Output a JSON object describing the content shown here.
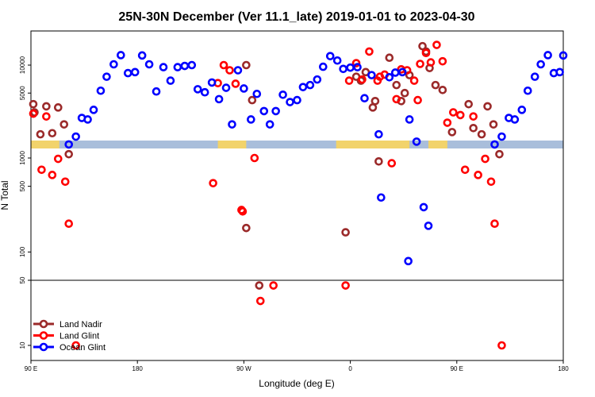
{
  "chart_data": {
    "type": "scatter",
    "title": "25N-30N December (Ver 11.1_late)   2019-01-01 to 2023-04-30",
    "xlabel": "Longitude (deg E)",
    "ylabel": "N Total",
    "x_ticks": [
      {
        "pos": 0,
        "label": "90 E"
      },
      {
        "pos": 90,
        "label": "180"
      },
      {
        "pos": 180,
        "label": "90 W"
      },
      {
        "pos": 270,
        "label": "0"
      },
      {
        "pos": 360,
        "label": "90 E"
      },
      {
        "pos": 450,
        "label": "180"
      }
    ],
    "xlim": [
      0,
      450
    ],
    "y_ticks_upper": [
      {
        "value": 10000,
        "label": "10000"
      },
      {
        "value": 5000,
        "label": "5000"
      },
      {
        "value": 1000,
        "label": "1000"
      },
      {
        "value": 500,
        "label": "500"
      },
      {
        "value": 100,
        "label": "100"
      },
      {
        "value": 50,
        "label": "50"
      }
    ],
    "y_ticks_lower": [
      {
        "value": 10,
        "label": "10"
      }
    ],
    "series": [
      {
        "name": "Land Nadir",
        "color": "#9b2a2a",
        "points": [
          [
            2,
            3800
          ],
          [
            3,
            3100
          ],
          [
            8,
            1800
          ],
          [
            13,
            3600
          ],
          [
            18,
            1850
          ],
          [
            23,
            3500
          ],
          [
            28,
            2300
          ],
          [
            32,
            1100
          ],
          [
            182,
            180
          ],
          [
            193,
            44
          ],
          [
            182,
            10000
          ],
          [
            187,
            4200
          ],
          [
            266,
            162
          ],
          [
            275,
            7500
          ],
          [
            279,
            6800
          ],
          [
            283,
            8400
          ],
          [
            289,
            3500
          ],
          [
            291,
            4100
          ],
          [
            294,
            920
          ],
          [
            303,
            12000
          ],
          [
            309,
            6100
          ],
          [
            313,
            4100
          ],
          [
            316,
            5000
          ],
          [
            320,
            7800
          ],
          [
            331,
            16000
          ],
          [
            334,
            14000
          ],
          [
            337,
            9300
          ],
          [
            342,
            6100
          ],
          [
            348,
            5400
          ],
          [
            356,
            1900
          ],
          [
            370,
            3800
          ],
          [
            374,
            2100
          ],
          [
            381,
            1800
          ],
          [
            386,
            3600
          ],
          [
            391,
            2300
          ],
          [
            396,
            1100
          ]
        ]
      },
      {
        "name": "Land Glint",
        "color": "#ff0000",
        "points": [
          [
            2,
            3000
          ],
          [
            9,
            750
          ],
          [
            13,
            2800
          ],
          [
            18,
            660
          ],
          [
            23,
            980
          ],
          [
            29,
            560
          ],
          [
            32,
            200
          ],
          [
            38,
            10
          ],
          [
            154,
            540
          ],
          [
            158,
            6400
          ],
          [
            163,
            10000
          ],
          [
            168,
            8800
          ],
          [
            173,
            6300
          ],
          [
            178,
            280
          ],
          [
            179,
            270
          ],
          [
            189,
            1000
          ],
          [
            194,
            30
          ],
          [
            205,
            44
          ],
          [
            266,
            44
          ],
          [
            269,
            6800
          ],
          [
            275,
            10500
          ],
          [
            280,
            7000
          ],
          [
            286,
            14000
          ],
          [
            293,
            6800
          ],
          [
            295,
            7500
          ],
          [
            299,
            7900
          ],
          [
            305,
            880
          ],
          [
            309,
            4300
          ],
          [
            313,
            9000
          ],
          [
            318,
            8800
          ],
          [
            324,
            6800
          ],
          [
            327,
            4200
          ],
          [
            329,
            10300
          ],
          [
            334,
            13500
          ],
          [
            338,
            10700
          ],
          [
            343,
            16500
          ],
          [
            348,
            11000
          ],
          [
            352,
            2400
          ],
          [
            357,
            3100
          ],
          [
            363,
            2900
          ],
          [
            367,
            750
          ],
          [
            374,
            2800
          ],
          [
            378,
            660
          ],
          [
            384,
            980
          ],
          [
            389,
            560
          ],
          [
            392,
            200
          ],
          [
            398,
            10
          ]
        ]
      },
      {
        "name": "Ocean Glint",
        "color": "#0000ff",
        "points": [
          [
            32,
            1400
          ],
          [
            38,
            1700
          ],
          [
            43,
            2700
          ],
          [
            48,
            2600
          ],
          [
            53,
            3300
          ],
          [
            59,
            5300
          ],
          [
            64,
            7500
          ],
          [
            70,
            10200
          ],
          [
            76,
            12800
          ],
          [
            82,
            8200
          ],
          [
            88,
            8400
          ],
          [
            94,
            12700
          ],
          [
            100,
            10200
          ],
          [
            106,
            5200
          ],
          [
            112,
            9500
          ],
          [
            118,
            6800
          ],
          [
            124,
            9500
          ],
          [
            130,
            9800
          ],
          [
            136,
            10000
          ],
          [
            141,
            5500
          ],
          [
            147,
            5100
          ],
          [
            153,
            6500
          ],
          [
            159,
            4300
          ],
          [
            165,
            5700
          ],
          [
            170,
            2300
          ],
          [
            175,
            8800
          ],
          [
            180,
            5600
          ],
          [
            186,
            2600
          ],
          [
            191,
            4900
          ],
          [
            197,
            3200
          ],
          [
            202,
            2300
          ],
          [
            207,
            3200
          ],
          [
            213,
            4800
          ],
          [
            219,
            4000
          ],
          [
            225,
            4200
          ],
          [
            230,
            5800
          ],
          [
            236,
            6100
          ],
          [
            242,
            7000
          ],
          [
            247,
            9600
          ],
          [
            253,
            12500
          ],
          [
            259,
            11200
          ],
          [
            264,
            9100
          ],
          [
            270,
            9400
          ],
          [
            276,
            9500
          ],
          [
            282,
            4400
          ],
          [
            288,
            7800
          ],
          [
            294,
            1800
          ],
          [
            296,
            380
          ],
          [
            303,
            7400
          ],
          [
            308,
            8300
          ],
          [
            314,
            8400
          ],
          [
            319,
            80
          ],
          [
            320,
            2600
          ],
          [
            326,
            1500
          ],
          [
            332,
            300
          ],
          [
            336,
            190
          ],
          [
            392,
            1400
          ],
          [
            398,
            1700
          ],
          [
            404,
            2700
          ],
          [
            409,
            2600
          ],
          [
            415,
            3300
          ],
          [
            420,
            5300
          ],
          [
            426,
            7500
          ],
          [
            431,
            10200
          ],
          [
            437,
            12800
          ],
          [
            442,
            8200
          ],
          [
            447,
            8400
          ],
          [
            450,
            12700
          ]
        ]
      }
    ],
    "legend_position": "bottom-left"
  }
}
